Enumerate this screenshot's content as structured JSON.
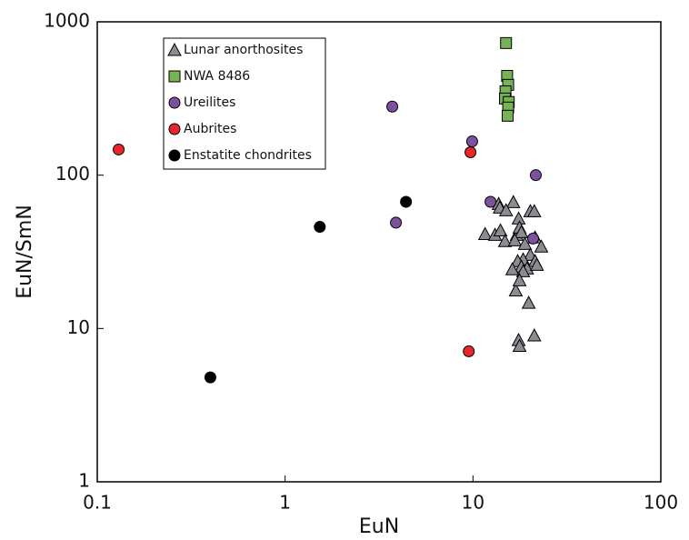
{
  "chart_data": {
    "type": "scatter",
    "xlabel": "EuN",
    "ylabel": "EuN/SmN",
    "xscale": "log",
    "yscale": "log",
    "xlim": [
      0.1,
      100
    ],
    "ylim": [
      1,
      1000
    ],
    "xticks": [
      0.1,
      1,
      10,
      100
    ],
    "yticks": [
      1,
      10,
      100,
      1000
    ],
    "legend": "upper left",
    "series": [
      {
        "name": "Lunar anorthosites",
        "color": "#8a8c92",
        "marker": "triangle",
        "x": [
          16.4,
          13.7,
          13.9,
          15.0,
          17.5,
          20.2,
          21.2,
          11.6,
          13.1,
          14.0,
          14.8,
          17.1,
          17.7,
          18.1,
          16.7,
          21.4,
          23.1,
          18.9,
          20.2,
          18.5,
          17.3,
          21.4,
          18.1,
          16.2,
          19.4,
          21.9,
          18.5,
          16.9,
          17.7,
          19.8,
          21.2,
          17.5,
          17.7
        ],
        "values": [
          66.7,
          64.9,
          61.4,
          59.0,
          52.1,
          58.2,
          58.2,
          41.3,
          40.8,
          43.6,
          37.1,
          40.8,
          45.5,
          42.5,
          37.6,
          39.2,
          34.2,
          35.6,
          30.2,
          28.2,
          27.5,
          27.5,
          25.3,
          24.3,
          24.6,
          26.0,
          23.6,
          17.7,
          20.6,
          14.7,
          9.0,
          8.4,
          7.7
        ]
      },
      {
        "name": "NWA 8486",
        "color": "#77b255",
        "marker": "square",
        "x": [
          15.0,
          15.2,
          15.4,
          14.9,
          14.8,
          15.5,
          15.4,
          15.3
        ],
        "values": [
          727,
          444,
          388,
          352,
          316,
          300,
          276,
          244
        ]
      },
      {
        "name": "Ureilites",
        "color": "#7e50a0",
        "marker": "circle",
        "x": [
          3.72,
          9.9,
          21.6,
          12.4,
          3.89,
          20.9
        ],
        "values": [
          280,
          166,
          100,
          67,
          49,
          38.6
        ]
      },
      {
        "name": "Aubrites",
        "color": "#e8262a",
        "marker": "circle",
        "x": [
          0.13,
          9.7,
          9.5
        ],
        "values": [
          147,
          141,
          7.1
        ]
      },
      {
        "name": "Enstatite chondrites",
        "color": "#000000",
        "marker": "circle",
        "x": [
          0.4,
          1.53,
          4.4
        ],
        "values": [
          4.8,
          46,
          67
        ]
      }
    ]
  }
}
